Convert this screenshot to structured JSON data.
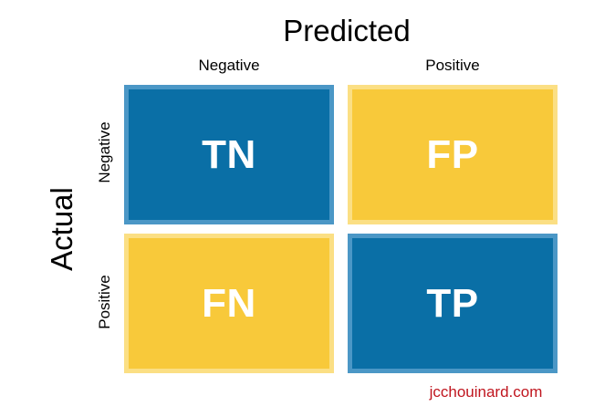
{
  "axes": {
    "predicted_title": "Predicted",
    "actual_title": "Actual",
    "columns": [
      "Negative",
      "Positive"
    ],
    "rows": [
      "Negative",
      "Positive"
    ]
  },
  "cells": [
    {
      "label": "TN",
      "color": "#0a6fa6"
    },
    {
      "label": "FP",
      "color": "#f8c93a"
    },
    {
      "label": "FN",
      "color": "#f8c93a"
    },
    {
      "label": "TP",
      "color": "#0a6fa6"
    }
  ],
  "colors": {
    "blue": "#0a6fa6",
    "yellow": "#f8c93a",
    "watermark": "#c0161f"
  },
  "watermark": "jcchouinard.com"
}
